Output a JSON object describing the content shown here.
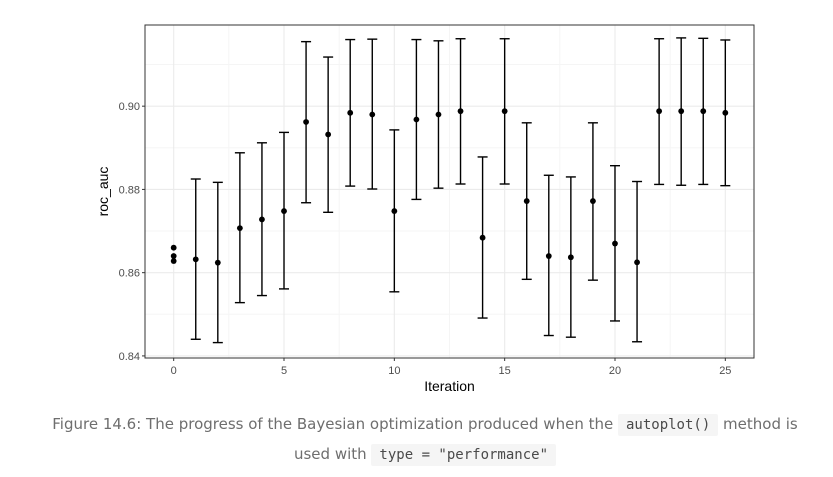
{
  "chart_data": {
    "type": "scatter",
    "title": "",
    "xlabel": "Iteration",
    "ylabel": "roc_auc",
    "xlim": [
      -1.3,
      26.3
    ],
    "ylim": [
      0.8395,
      0.9195
    ],
    "x_ticks": [
      0,
      5,
      10,
      15,
      20,
      25
    ],
    "x_tick_labels": [
      "0",
      "5",
      "10",
      "15",
      "20",
      "25"
    ],
    "y_ticks": [
      0.84,
      0.86,
      0.88,
      0.9
    ],
    "y_tick_labels": [
      "0.84",
      "0.86",
      "0.88",
      "0.90"
    ],
    "grid": true,
    "theme": "bw",
    "error_bars": true,
    "points": [
      {
        "x": 0,
        "y": 0.866
      },
      {
        "x": 0,
        "y": 0.864
      },
      {
        "x": 0,
        "y": 0.8628
      },
      {
        "x": 1,
        "y": 0.8632,
        "low": 0.844,
        "high": 0.8825
      },
      {
        "x": 2,
        "y": 0.8624,
        "low": 0.8432,
        "high": 0.8817
      },
      {
        "x": 3,
        "y": 0.8707,
        "low": 0.8528,
        "high": 0.8888
      },
      {
        "x": 4,
        "y": 0.8728,
        "low": 0.8545,
        "high": 0.8912
      },
      {
        "x": 5,
        "y": 0.8748,
        "low": 0.8561,
        "high": 0.8937
      },
      {
        "x": 6,
        "y": 0.8962,
        "low": 0.8768,
        "high": 0.9155
      },
      {
        "x": 7,
        "y": 0.8932,
        "low": 0.8745,
        "high": 0.9118
      },
      {
        "x": 8,
        "y": 0.8984,
        "low": 0.8808,
        "high": 0.916
      },
      {
        "x": 9,
        "y": 0.898,
        "low": 0.8801,
        "high": 0.9161
      },
      {
        "x": 10,
        "y": 0.8748,
        "low": 0.8554,
        "high": 0.8943
      },
      {
        "x": 11,
        "y": 0.8968,
        "low": 0.8776,
        "high": 0.916
      },
      {
        "x": 12,
        "y": 0.898,
        "low": 0.8803,
        "high": 0.9157
      },
      {
        "x": 13,
        "y": 0.8988,
        "low": 0.8813,
        "high": 0.9162
      },
      {
        "x": 14,
        "y": 0.8684,
        "low": 0.8491,
        "high": 0.8878
      },
      {
        "x": 15,
        "y": 0.8988,
        "low": 0.8813,
        "high": 0.9162
      },
      {
        "x": 16,
        "y": 0.8772,
        "low": 0.8584,
        "high": 0.896
      },
      {
        "x": 17,
        "y": 0.864,
        "low": 0.8449,
        "high": 0.8834
      },
      {
        "x": 18,
        "y": 0.8637,
        "low": 0.8445,
        "high": 0.883
      },
      {
        "x": 19,
        "y": 0.8772,
        "low": 0.8582,
        "high": 0.896
      },
      {
        "x": 20,
        "y": 0.867,
        "low": 0.8484,
        "high": 0.8857
      },
      {
        "x": 21,
        "y": 0.8625,
        "low": 0.8434,
        "high": 0.8819
      },
      {
        "x": 22,
        "y": 0.8988,
        "low": 0.8812,
        "high": 0.9162
      },
      {
        "x": 23,
        "y": 0.8988,
        "low": 0.881,
        "high": 0.9164
      },
      {
        "x": 24,
        "y": 0.8988,
        "low": 0.8812,
        "high": 0.9163
      },
      {
        "x": 25,
        "y": 0.8984,
        "low": 0.8809,
        "high": 0.9159
      }
    ]
  },
  "caption": {
    "text_1": "Figure 14.6: The progress of the Bayesian optimization produced when the ",
    "code_1": "autoplot()",
    "text_2": " method is used with ",
    "code_2": "type = \"performance\""
  },
  "colors": {
    "point": "#000000",
    "grid_major": "#ebebeb",
    "grid_minor": "#f5f5f5",
    "panel_border": "#333333",
    "tick_text": "#4d4d4d"
  }
}
